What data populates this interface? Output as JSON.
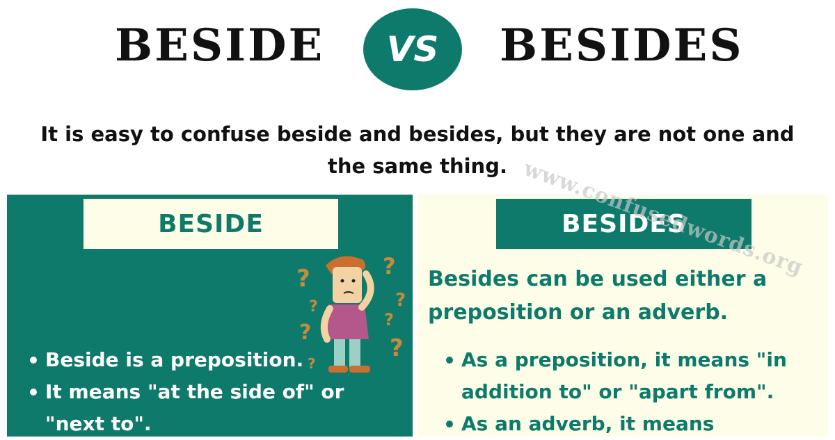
{
  "header": {
    "word_left": "BESIDE",
    "vs_label": "VS",
    "word_right": "BESIDES"
  },
  "intro_text": "It is easy to confuse beside and besides, but they are not one and the same thing.",
  "watermark": "www.confusedwords.org",
  "left_panel": {
    "label": "BESIDE",
    "bullets": [
      "Beside is a preposition.",
      "It means \"at the side of\" or \"next to\"."
    ]
  },
  "right_panel": {
    "label": "BESIDES",
    "intro": "Besides can be used either a preposition or an adverb.",
    "bullets": [
      "As a preposition, it means \"in addition to\" or \"apart from\".",
      "As an adverb, it means"
    ]
  },
  "colors": {
    "teal": "#0e7a6b",
    "cream": "#fdfde8",
    "question_mark": "#c98a3a"
  }
}
